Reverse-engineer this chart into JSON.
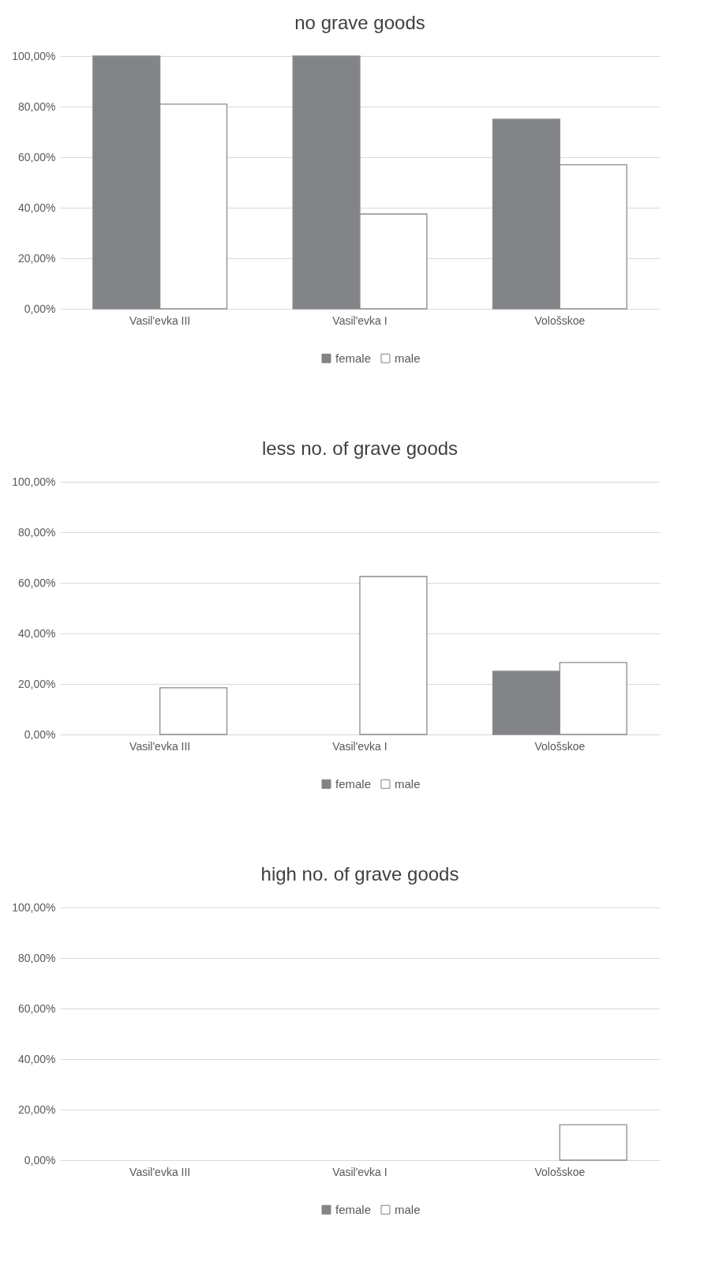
{
  "chart_data": [
    {
      "type": "bar",
      "title": "no grave goods",
      "categories": [
        "Vasil'evka III",
        "Vasil'evka I",
        "Vološskoe"
      ],
      "series": [
        {
          "name": "female",
          "color": "#838487",
          "values": [
            100,
            100,
            75
          ]
        },
        {
          "name": "male",
          "color": "#ffffff",
          "values": [
            81,
            37.5,
            57
          ]
        }
      ],
      "ylim": [
        0,
        100
      ],
      "yticks": [
        {
          "value": 0,
          "label": "0,00%"
        },
        {
          "value": 20,
          "label": "20,00%"
        },
        {
          "value": 40,
          "label": "40,00%"
        },
        {
          "value": 60,
          "label": "60,00%"
        },
        {
          "value": 80,
          "label": "80,00%"
        },
        {
          "value": 100,
          "label": "100,00%"
        }
      ],
      "grid": "y",
      "legend": "bottom"
    },
    {
      "type": "bar",
      "title": "less no. of grave goods",
      "categories": [
        "Vasil'evka III",
        "Vasil'evka I",
        "Vološskoe"
      ],
      "series": [
        {
          "name": "female",
          "color": "#838487",
          "values": [
            0,
            0,
            25
          ]
        },
        {
          "name": "male",
          "color": "#ffffff",
          "values": [
            18.5,
            62.5,
            28.5
          ]
        }
      ],
      "ylim": [
        0,
        100
      ],
      "yticks": [
        {
          "value": 0,
          "label": "0,00%"
        },
        {
          "value": 20,
          "label": "20,00%"
        },
        {
          "value": 40,
          "label": "40,00%"
        },
        {
          "value": 60,
          "label": "60,00%"
        },
        {
          "value": 80,
          "label": "80,00%"
        },
        {
          "value": 100,
          "label": "100,00%"
        }
      ],
      "grid": "y",
      "legend": "bottom"
    },
    {
      "type": "bar",
      "title": "high no. of grave goods",
      "categories": [
        "Vasil'evka III",
        "Vasil'evka I",
        "Vološskoe"
      ],
      "series": [
        {
          "name": "female",
          "color": "#838487",
          "values": [
            0,
            0,
            0
          ]
        },
        {
          "name": "male",
          "color": "#ffffff",
          "values": [
            0,
            0,
            14
          ]
        }
      ],
      "ylim": [
        0,
        100
      ],
      "yticks": [
        {
          "value": 0,
          "label": "0,00%"
        },
        {
          "value": 20,
          "label": "20,00%"
        },
        {
          "value": 40,
          "label": "40,00%"
        },
        {
          "value": 60,
          "label": "60,00%"
        },
        {
          "value": 80,
          "label": "80,00%"
        },
        {
          "value": 100,
          "label": "100,00%"
        }
      ],
      "grid": "y",
      "legend": "bottom"
    }
  ]
}
